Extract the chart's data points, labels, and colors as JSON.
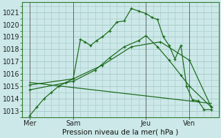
{
  "background_color": "#cce8e8",
  "grid_color": "#aacccc",
  "line_color": "#1a6b1a",
  "xlabel": "Pression niveau de la mer( hPa )",
  "ylim": [
    1012.5,
    1021.8
  ],
  "yticks": [
    1013,
    1014,
    1015,
    1016,
    1017,
    1018,
    1019,
    1020,
    1021
  ],
  "xtick_labels": [
    "Mer",
    "Sam",
    "Jeu",
    "Ven"
  ],
  "xtick_positions": [
    0,
    30,
    80,
    110
  ],
  "vline_positions": [
    0,
    30,
    80,
    110
  ],
  "xlim": [
    -5,
    130
  ],
  "series1_x": [
    0,
    5,
    10,
    15,
    20,
    25,
    30,
    35,
    38,
    42,
    46,
    50,
    55,
    60,
    65,
    70,
    75,
    80,
    84,
    88,
    92,
    96,
    100,
    104,
    108,
    112,
    116,
    120,
    125
  ],
  "series1_y": [
    1012.6,
    1013.3,
    1014.0,
    1014.5,
    1015.0,
    1015.3,
    1015.6,
    1018.8,
    1018.6,
    1018.3,
    1018.7,
    1019.0,
    1019.5,
    1020.2,
    1020.3,
    1021.3,
    1021.1,
    1020.9,
    1020.6,
    1020.4,
    1019.0,
    1018.3,
    1017.2,
    1018.3,
    1015.0,
    1013.9,
    1013.8,
    1013.1,
    1013.1
  ],
  "series2_x": [
    0,
    30,
    45,
    55,
    65,
    75,
    80,
    88,
    96,
    104,
    110,
    125
  ],
  "series2_y": [
    1014.7,
    1015.4,
    1016.3,
    1017.3,
    1018.2,
    1018.7,
    1019.1,
    1018.2,
    1017.1,
    1015.9,
    1015.0,
    1013.3
  ],
  "series3_x": [
    0,
    30,
    50,
    70,
    90,
    110,
    125
  ],
  "series3_y": [
    1015.1,
    1015.6,
    1016.7,
    1018.2,
    1018.6,
    1017.1,
    1013.3
  ],
  "series4_x": [
    0,
    125
  ],
  "series4_y": [
    1015.3,
    1013.6
  ]
}
